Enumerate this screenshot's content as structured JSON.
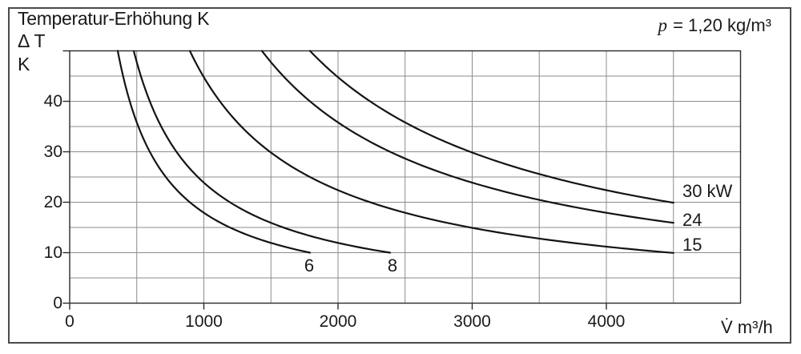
{
  "header": {
    "title": "Temperatur-Erhöhung K",
    "y_axis_line1": "Δ T",
    "y_axis_line2": "K",
    "annotation_symbol": "p",
    "annotation_text": " = 1,20 kg/m³",
    "x_axis_unit": "V̇ m³/h"
  },
  "colors": {
    "background": "#ffffff",
    "outer_border": "#4a4a4a",
    "grid": "#8c8c8c",
    "frame": "#2a2a2a",
    "curve": "#141414",
    "text": "#1a1a1a"
  },
  "chart_data": {
    "type": "line",
    "title": "Temperatur-Erhöhung K",
    "xlabel": "V̇ m³/h",
    "ylabel": "Δ T K",
    "annotation": "p = 1,20 kg/m³",
    "xlim": [
      0,
      5000
    ],
    "ylim": [
      0,
      50
    ],
    "x_grid_step": 500,
    "y_grid_step": 5,
    "grid": true,
    "model": "dT = coefficient * power_kw / V",
    "coefficient": 2985,
    "x_ticks": [
      {
        "v": 0,
        "label": "0"
      },
      {
        "v": 1000,
        "label": "1000"
      },
      {
        "v": 2000,
        "label": "2000"
      },
      {
        "v": 3000,
        "label": "3000"
      },
      {
        "v": 4000,
        "label": "4000"
      }
    ],
    "y_ticks": [
      {
        "v": 0,
        "label": "0"
      },
      {
        "v": 10,
        "label": "10"
      },
      {
        "v": 20,
        "label": "20"
      },
      {
        "v": 30,
        "label": "30"
      },
      {
        "v": 40,
        "label": "40"
      },
      {
        "v": 50,
        "label": ""
      }
    ],
    "series": [
      {
        "name": "6 kW",
        "power_kw": 6,
        "label": "6",
        "label_anchor": "center",
        "label_x": 1785,
        "label_y": 7.4,
        "points": [
          [
            358,
            50
          ],
          [
            389,
            46
          ],
          [
            426,
            42
          ],
          [
            471,
            38
          ],
          [
            527,
            34
          ],
          [
            597,
            30
          ],
          [
            663,
            27
          ],
          [
            746,
            24
          ],
          [
            853,
            21
          ],
          [
            995,
            18
          ],
          [
            1119,
            16
          ],
          [
            1279,
            14
          ],
          [
            1433,
            12.5
          ],
          [
            1628,
            11
          ],
          [
            1791,
            10
          ]
        ]
      },
      {
        "name": "8 kW",
        "power_kw": 8,
        "label": "8",
        "label_anchor": "center",
        "label_x": 2406,
        "label_y": 7.4,
        "points": [
          [
            478,
            50
          ],
          [
            519,
            46
          ],
          [
            569,
            42
          ],
          [
            628,
            38
          ],
          [
            702,
            34
          ],
          [
            796,
            30
          ],
          [
            884,
            27
          ],
          [
            995,
            24
          ],
          [
            1137,
            21
          ],
          [
            1327,
            18
          ],
          [
            1493,
            16
          ],
          [
            1706,
            14
          ],
          [
            1910,
            12.5
          ],
          [
            2171,
            11
          ],
          [
            2388,
            10
          ]
        ]
      },
      {
        "name": "15 kW",
        "power_kw": 15,
        "label": "15",
        "label_anchor": "start",
        "label_x": 4567,
        "label_y": 11.5,
        "points": [
          [
            896,
            50
          ],
          [
            973,
            46
          ],
          [
            1066,
            42
          ],
          [
            1178,
            38
          ],
          [
            1317,
            34
          ],
          [
            1493,
            30
          ],
          [
            1658,
            27
          ],
          [
            1866,
            24
          ],
          [
            2132,
            21
          ],
          [
            2488,
            18
          ],
          [
            2798,
            16
          ],
          [
            3198,
            14
          ],
          [
            3582,
            12.5
          ],
          [
            4070,
            11
          ],
          [
            4500,
            9.95
          ]
        ]
      },
      {
        "name": "24 kW",
        "power_kw": 24,
        "label": "24",
        "label_anchor": "start",
        "label_x": 4567,
        "label_y": 16.5,
        "points": [
          [
            1433,
            50
          ],
          [
            1557,
            46
          ],
          [
            1706,
            42
          ],
          [
            1885,
            38
          ],
          [
            2107,
            34
          ],
          [
            2388,
            30
          ],
          [
            2653,
            27
          ],
          [
            2985,
            24
          ],
          [
            3256,
            22
          ],
          [
            3582,
            20
          ],
          [
            3872,
            18.5
          ],
          [
            4214,
            17
          ],
          [
            4500,
            15.92
          ]
        ]
      },
      {
        "name": "30 kW",
        "power_kw": 30,
        "label": "30 kW",
        "label_anchor": "start",
        "label_x": 4567,
        "label_y": 22.1,
        "points": [
          [
            1791,
            50
          ],
          [
            1947,
            46
          ],
          [
            2132,
            42
          ],
          [
            2357,
            38
          ],
          [
            2634,
            34
          ],
          [
            2889,
            31
          ],
          [
            3198,
            28
          ],
          [
            3444,
            26
          ],
          [
            3731,
            24
          ],
          [
            3980,
            22.5
          ],
          [
            4165,
            21.5
          ],
          [
            4368,
            20.5
          ],
          [
            4500,
            19.9
          ]
        ]
      }
    ]
  }
}
